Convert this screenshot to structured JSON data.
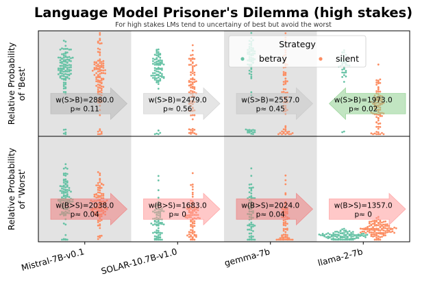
{
  "chart_data": {
    "type": "scatter",
    "title": "Language Model Prisoner's Dilemma (high stakes)",
    "subtitle": "For high stakes LMs tend to uncertainy of best but avoid the worst",
    "categories": [
      "Mistral-7B-v0.1",
      "SOLAR-10.7B-v1.0",
      "gemma-7b",
      "llama-2-7b"
    ],
    "shaded_categories": [
      0,
      2
    ],
    "grid": false,
    "legend": {
      "title": "Strategy",
      "placement": "top-right",
      "entries": [
        {
          "label": "betray",
          "color": "#66c2a5"
        },
        {
          "label": "silent",
          "color": "#fc8d62"
        }
      ]
    },
    "panels": [
      {
        "ylabel_line1": "Relative Probability",
        "ylabel_line2": "of 'Best'",
        "series": [
          {
            "name": "betray",
            "color": "#66c2a5",
            "groups": [
              {
                "center": 0.66,
                "spread": 0.11,
                "n": 110,
                "tail": 0.04
              },
              {
                "center": 0.64,
                "spread": 0.1,
                "n": 85,
                "tail": 0.08
              },
              {
                "center": 0.76,
                "spread": 0.12,
                "n": 70,
                "tail": 0.2
              },
              {
                "center": 0.7,
                "spread": 0.08,
                "n": 40,
                "tail": 0.02
              }
            ]
          },
          {
            "name": "silent",
            "color": "#fc8d62",
            "groups": [
              {
                "center": 0.58,
                "spread": 0.16,
                "n": 110,
                "tail": 0.06
              },
              {
                "center": 0.5,
                "spread": 0.17,
                "n": 85,
                "tail": 0.1
              },
              {
                "center": 0.44,
                "spread": 0.22,
                "n": 70,
                "tail": 0.2
              },
              {
                "center": 0.3,
                "spread": 0.15,
                "n": 90,
                "tail": 0.05
              }
            ]
          }
        ],
        "arrows": [
          {
            "text_line1": "w(S>B)=2880.0",
            "text_line2": "p≈ 0.11",
            "color": "#b8b8b8",
            "direction": "right"
          },
          {
            "text_line1": "w(S>B)=2479.0",
            "text_line2": "p≈ 0.56",
            "color": "#d0d0d0",
            "direction": "right"
          },
          {
            "text_line1": "w(S>B)=2557.0",
            "text_line2": "p≈ 0.45",
            "color": "#c8c8c8",
            "direction": "right"
          },
          {
            "text_line1": "w(S>B)=1973.0",
            "text_line2": "p≈ 0.02",
            "color": "#8fd08f",
            "direction": "left"
          }
        ]
      },
      {
        "ylabel_line1": "Relative Probability",
        "ylabel_line2": "of 'Worst'",
        "series": [
          {
            "name": "betray",
            "color": "#66c2a5",
            "groups": [
              {
                "center": 0.45,
                "spread": 0.13,
                "n": 110,
                "tail": 0.06
              },
              {
                "center": 0.24,
                "spread": 0.12,
                "n": 80,
                "tail": 0.1
              },
              {
                "center": 0.3,
                "spread": 0.16,
                "n": 70,
                "tail": 0.12
              },
              {
                "center": 0.05,
                "spread": 0.03,
                "n": 100,
                "tail": 0.2
              }
            ]
          },
          {
            "name": "silent",
            "color": "#fc8d62",
            "groups": [
              {
                "center": 0.36,
                "spread": 0.12,
                "n": 110,
                "tail": 0.04
              },
              {
                "center": 0.28,
                "spread": 0.13,
                "n": 85,
                "tail": 0.12
              },
              {
                "center": 0.22,
                "spread": 0.16,
                "n": 70,
                "tail": 0.18
              },
              {
                "center": 0.12,
                "spread": 0.04,
                "n": 120,
                "tail": 0.05
              }
            ]
          }
        ],
        "arrows": [
          {
            "text_line1": "w(B>S)=2038.0",
            "text_line2": "p≈ 0.04",
            "color": "#f08080",
            "direction": "right"
          },
          {
            "text_line1": "w(B>S)=1683.0",
            "text_line2": "p≈ 0",
            "color": "#ff9a9a",
            "direction": "right"
          },
          {
            "text_line1": "w(B>S)=2024.0",
            "text_line2": "p≈ 0.04",
            "color": "#f08080",
            "direction": "right"
          },
          {
            "text_line1": "w(B>S)=1357.0",
            "text_line2": "p≈ 0",
            "color": "#ff9a9a",
            "direction": "right"
          }
        ]
      }
    ]
  }
}
